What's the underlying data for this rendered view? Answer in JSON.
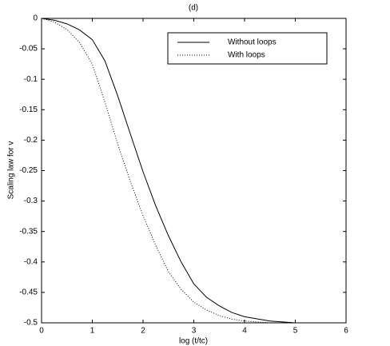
{
  "chart_data": {
    "type": "line",
    "title": "(d)",
    "x_label": "log (t/tc)",
    "y_label": "Scaling law for v",
    "x": [
      0,
      0.25,
      0.5,
      0.75,
      1,
      1.25,
      1.5,
      1.75,
      2,
      2.25,
      2.5,
      2.75,
      3,
      3.25,
      3.5,
      3.75,
      4,
      4.5,
      5,
      5.5,
      6
    ],
    "series": [
      {
        "name": "Without loops",
        "color": "#000000",
        "style": "solid",
        "values": [
          0,
          -0.003,
          -0.009,
          -0.019,
          -0.035,
          -0.07,
          -0.127,
          -0.19,
          -0.252,
          -0.308,
          -0.357,
          -0.4,
          -0.436,
          -0.458,
          -0.472,
          -0.483,
          -0.49,
          -0.497,
          -0.5,
          -0.5,
          -0.5
        ]
      },
      {
        "name": "With loops",
        "color": "#000000",
        "style": "dotted",
        "values": [
          0,
          -0.006,
          -0.018,
          -0.04,
          -0.075,
          -0.138,
          -0.206,
          -0.268,
          -0.324,
          -0.373,
          -0.416,
          -0.445,
          -0.466,
          -0.479,
          -0.488,
          -0.494,
          -0.497,
          -0.5,
          -0.5,
          -0.5,
          -0.5
        ]
      }
    ],
    "xlim": [
      0,
      6
    ],
    "xticks": [
      0,
      1,
      2,
      3,
      4,
      5,
      6
    ],
    "ylim": [
      -0.5,
      0
    ],
    "yticks": [
      0,
      -0.05,
      -0.1,
      -0.15,
      -0.2,
      -0.25,
      -0.3,
      -0.35,
      -0.4,
      -0.45,
      -0.5
    ],
    "grid": false,
    "legend": "upper right"
  }
}
